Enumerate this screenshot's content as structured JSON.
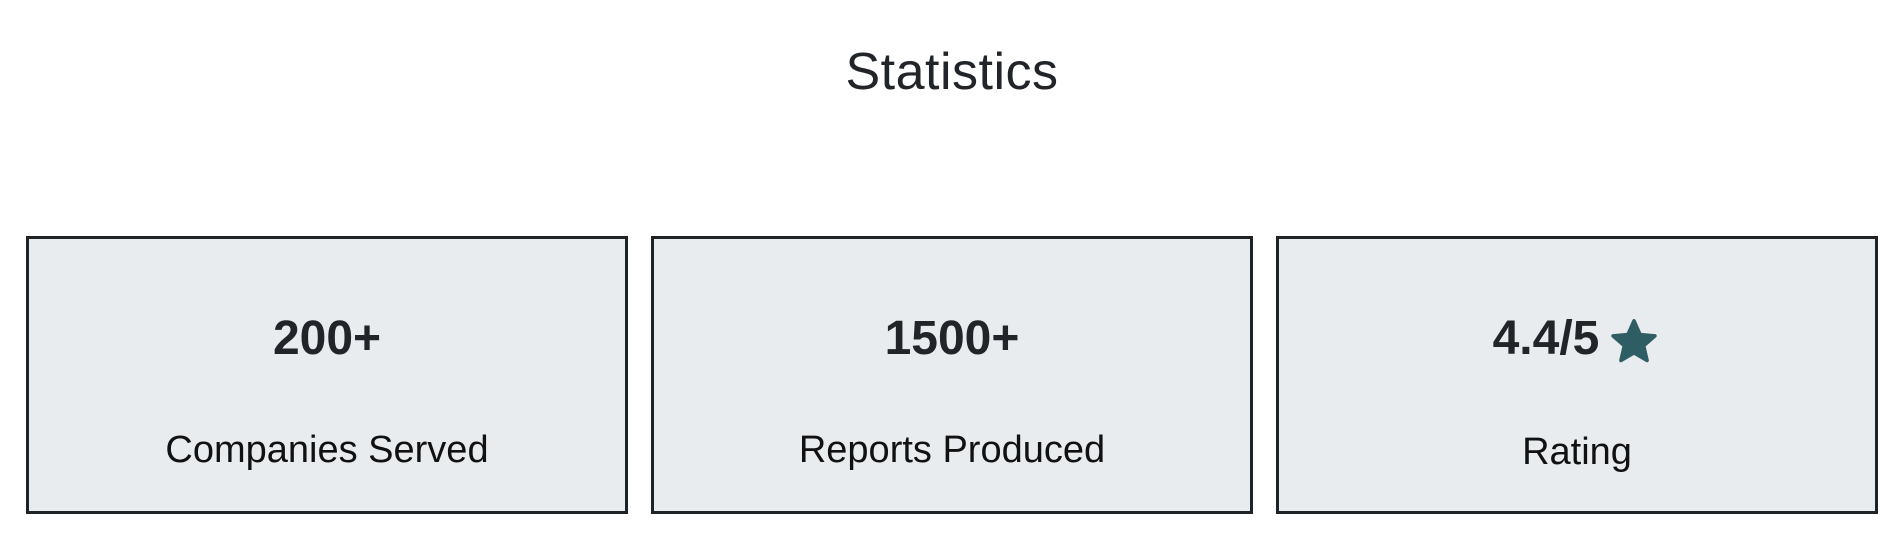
{
  "section": {
    "title": "Statistics"
  },
  "stats": [
    {
      "value": "200+",
      "label": "Companies Served"
    },
    {
      "value": "1500+",
      "label": "Reports Produced"
    },
    {
      "value": "4.4/5",
      "label": "Rating",
      "icon": "star-icon"
    }
  ],
  "colors": {
    "card_background": "#e8ecef",
    "card_border": "#1f2326",
    "star": "#2e5e63",
    "text": "#212529"
  }
}
